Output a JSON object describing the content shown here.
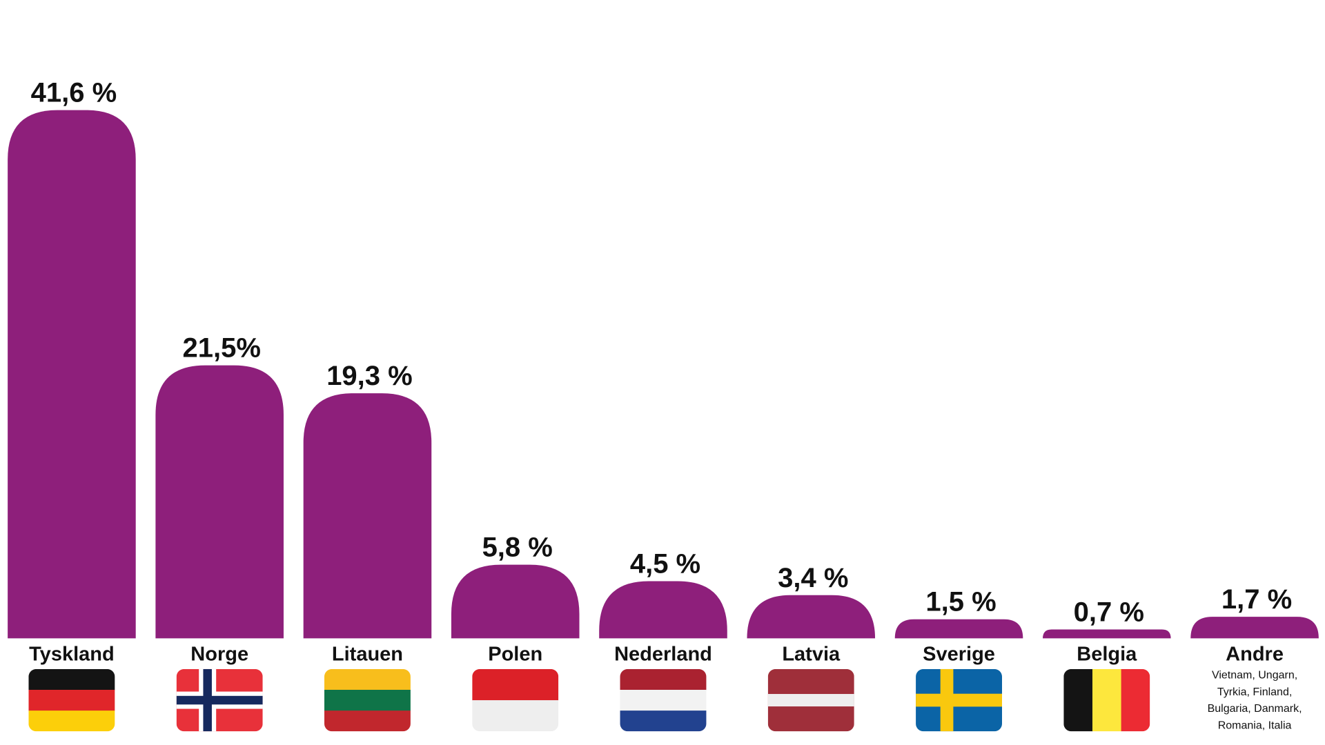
{
  "chart_data": {
    "type": "bar",
    "categories": [
      "Tyskland",
      "Norge",
      "Litauen",
      "Polen",
      "Nederland",
      "Latvia",
      "Sverige",
      "Belgia",
      "Andre"
    ],
    "values": [
      41.6,
      21.5,
      19.3,
      5.8,
      4.5,
      3.4,
      1.5,
      0.7,
      1.7
    ],
    "value_labels": [
      "41,6 %",
      "21,5%",
      "19,3 %",
      "5,8 %",
      "4,5 %",
      "3,4 %",
      "1,5 %",
      "0,7 %",
      "1,7 %"
    ],
    "title": "",
    "xlabel": "",
    "ylabel": "",
    "grid": false,
    "legend": "none",
    "bar_color": "#8e1f7b",
    "flag_icons": [
      "germany-flag",
      "norway-flag",
      "lithuania-flag",
      "poland-flag",
      "netherlands-flag",
      "latvia-flag",
      "sweden-flag",
      "belgium-flag"
    ],
    "other_countries_note": [
      "Vietnam, Ungarn,",
      "Tyrkia, Finland,",
      "Bulgaria, Danmark,",
      "Romania, Italia"
    ]
  }
}
